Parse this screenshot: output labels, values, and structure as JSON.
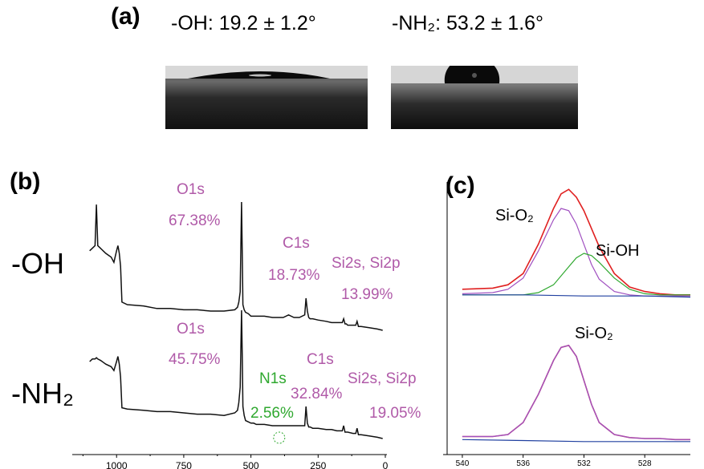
{
  "panel_a": {
    "letter": "(a)",
    "left_label": "-OH:  19.2 ± 1.2°",
    "right_label": "-NH₂:  53.2 ± 1.6°"
  },
  "panel_b": {
    "letter": "(b)",
    "row_labels": [
      "-OH",
      "-NH₂"
    ],
    "oh_peaks": {
      "o1s": "O1s",
      "o1s_pct": "67.38%",
      "c1s": "C1s",
      "c1s_pct": "18.73%",
      "si": "Si2s, Si2p",
      "si_pct": "13.99%"
    },
    "nh2_peaks": {
      "o1s": "O1s",
      "o1s_pct": "45.75%",
      "n1s": "N1s",
      "n1s_pct": "2.56%",
      "c1s": "C1s",
      "c1s_pct": "32.84%",
      "si": "Si2s, Si2p",
      "si_pct": "19.05%"
    }
  },
  "panel_c": {
    "letter": "(c)",
    "top_labels": [
      "Si-O₂",
      "Si-OH"
    ],
    "bottom_labels": [
      "Si-O₂"
    ]
  },
  "colors": {
    "pink": "#b05aa8",
    "green": "#2fa82f",
    "red": "#e02020",
    "blue": "#2040a0",
    "purple": "#a050c0"
  },
  "chart_data": [
    {
      "type": "line",
      "title": "",
      "xlabel": "",
      "ylabel": "",
      "x_ticks": [
        "1000",
        "750",
        "500",
        "250",
        "0"
      ],
      "xlim": [
        1150,
        0
      ],
      "series": [
        {
          "x": [
            1100,
            1090,
            1080,
            1075,
            1070,
            1060,
            1040,
            1020,
            1010,
            1000,
            995,
            990,
            985,
            980,
            960,
            900,
            850,
            800,
            750,
            700,
            650,
            600,
            560,
            550,
            545,
            540,
            535,
            532,
            530,
            525,
            520,
            510,
            500,
            490,
            480,
            450,
            420,
            400,
            380,
            360,
            340,
            320,
            300,
            295,
            290,
            285,
            280,
            270,
            250,
            220,
            200,
            180,
            160,
            155,
            150,
            145,
            140,
            120,
            110,
            105,
            100,
            90,
            60,
            30,
            10
          ],
          "y": [
            0.62,
            0.64,
            0.66,
            0.98,
            0.66,
            0.64,
            0.6,
            0.57,
            0.53,
            0.62,
            0.66,
            0.6,
            0.5,
            0.22,
            0.2,
            0.19,
            0.17,
            0.17,
            0.16,
            0.16,
            0.15,
            0.15,
            0.16,
            0.18,
            0.22,
            0.3,
            1.0,
            0.55,
            0.2,
            0.16,
            0.14,
            0.13,
            0.11,
            0.11,
            0.11,
            0.11,
            0.1,
            0.1,
            0.1,
            0.12,
            0.1,
            0.1,
            0.12,
            0.25,
            0.15,
            0.1,
            0.09,
            0.09,
            0.08,
            0.07,
            0.06,
            0.06,
            0.06,
            0.09,
            0.05,
            0.05,
            0.04,
            0.04,
            0.04,
            0.07,
            0.03,
            0.03,
            0.02,
            0.01,
            0.0
          ]
        },
        {
          "x": [
            1100,
            1090,
            1080,
            1075,
            1070,
            1060,
            1040,
            1020,
            1010,
            1000,
            995,
            990,
            985,
            980,
            960,
            900,
            850,
            800,
            750,
            700,
            650,
            600,
            560,
            550,
            545,
            540,
            535,
            532,
            530,
            525,
            520,
            510,
            500,
            490,
            480,
            450,
            420,
            400,
            380,
            360,
            340,
            320,
            300,
            295,
            290,
            285,
            280,
            270,
            250,
            220,
            200,
            180,
            160,
            155,
            150,
            145,
            140,
            120,
            110,
            105,
            100,
            90,
            60,
            30,
            10
          ],
          "y": [
            0.6,
            0.62,
            0.62,
            0.63,
            0.62,
            0.61,
            0.58,
            0.56,
            0.53,
            0.6,
            0.64,
            0.58,
            0.48,
            0.24,
            0.23,
            0.22,
            0.21,
            0.21,
            0.2,
            0.19,
            0.19,
            0.18,
            0.2,
            0.22,
            0.28,
            0.4,
            1.0,
            0.6,
            0.25,
            0.18,
            0.14,
            0.13,
            0.12,
            0.12,
            0.11,
            0.11,
            0.1,
            0.1,
            0.1,
            0.1,
            0.1,
            0.1,
            0.1,
            0.25,
            0.12,
            0.09,
            0.09,
            0.08,
            0.08,
            0.07,
            0.07,
            0.06,
            0.06,
            0.1,
            0.05,
            0.05,
            0.05,
            0.04,
            0.04,
            0.08,
            0.03,
            0.03,
            0.02,
            0.01,
            0.0
          ]
        }
      ]
    },
    {
      "type": "line",
      "title": "",
      "xlabel": "",
      "ylabel": "",
      "x_ticks": [
        "540",
        "536",
        "532",
        "528"
      ],
      "xlim": [
        541,
        525
      ],
      "series": [
        {
          "x": [
            540,
            538,
            537,
            536,
            535,
            534,
            533.5,
            533,
            532.5,
            532,
            531.5,
            531,
            530,
            529,
            528,
            527,
            526,
            525
          ],
          "y": [
            0.08,
            0.09,
            0.12,
            0.22,
            0.48,
            0.8,
            0.93,
            0.97,
            0.9,
            0.78,
            0.62,
            0.46,
            0.22,
            0.1,
            0.06,
            0.04,
            0.03,
            0.03
          ]
        },
        {
          "x": [
            540,
            538,
            537,
            536,
            535,
            534,
            533.5,
            533,
            532.5,
            532,
            531.5,
            531,
            530,
            529,
            528,
            527,
            526,
            525
          ],
          "y": [
            0.04,
            0.05,
            0.08,
            0.18,
            0.42,
            0.7,
            0.8,
            0.78,
            0.66,
            0.48,
            0.3,
            0.17,
            0.06,
            0.03,
            0.02,
            0.02,
            0.02,
            0.02
          ]
        },
        {
          "x": [
            540,
            536,
            535,
            534,
            533,
            532.5,
            532,
            531.5,
            531,
            530,
            529,
            528,
            527,
            526,
            525
          ],
          "y": [
            0.03,
            0.03,
            0.05,
            0.12,
            0.28,
            0.36,
            0.4,
            0.38,
            0.32,
            0.18,
            0.08,
            0.04,
            0.03,
            0.03,
            0.03
          ]
        },
        {
          "x": [
            540,
            536,
            532,
            528,
            525
          ],
          "y": [
            0.03,
            0.03,
            0.02,
            0.02,
            0.01
          ]
        },
        {
          "x": [
            540,
            538,
            537,
            536,
            535,
            534,
            533.5,
            533,
            532.5,
            532,
            531.5,
            531,
            530,
            529,
            528,
            527,
            526,
            525
          ],
          "y": [
            0.06,
            0.06,
            0.08,
            0.2,
            0.48,
            0.82,
            0.95,
            0.97,
            0.86,
            0.62,
            0.38,
            0.2,
            0.08,
            0.05,
            0.04,
            0.04,
            0.03,
            0.03
          ]
        },
        {
          "x": [
            540,
            538,
            537,
            536,
            535,
            534,
            533.5,
            533,
            532.5,
            532,
            531.5,
            531,
            530,
            529,
            528,
            527,
            526,
            525
          ],
          "y": [
            0.06,
            0.06,
            0.08,
            0.2,
            0.48,
            0.82,
            0.95,
            0.97,
            0.86,
            0.62,
            0.38,
            0.2,
            0.08,
            0.05,
            0.04,
            0.04,
            0.03,
            0.03
          ]
        },
        {
          "x": [
            540,
            536,
            532,
            528,
            525
          ],
          "y": [
            0.03,
            0.02,
            0.01,
            0.01,
            0.01
          ]
        }
      ]
    }
  ]
}
